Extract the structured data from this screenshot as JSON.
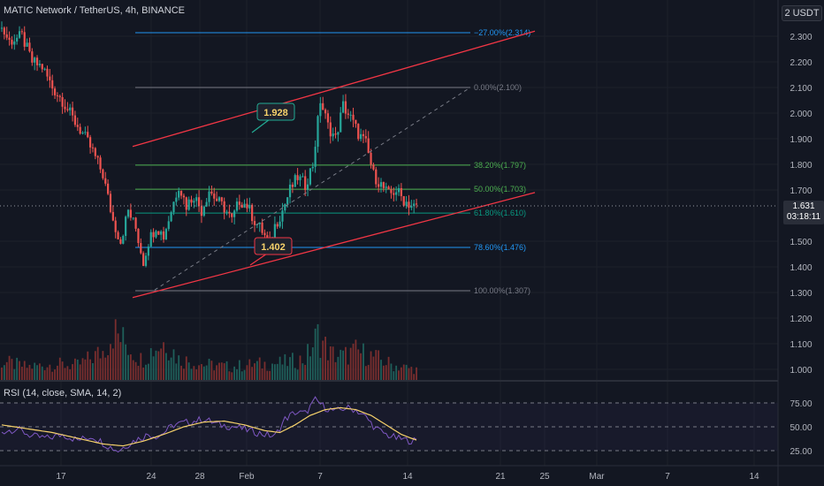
{
  "header": {
    "symbol_label": "MATIC Network / TetherUS, 4h, BINANCE",
    "unit_label": "2 USDT"
  },
  "price_axis": {
    "ticks": [
      "2.300",
      "2.200",
      "2.100",
      "2.000",
      "1.900",
      "1.800",
      "1.700",
      "1.500",
      "1.400",
      "1.300",
      "1.200",
      "1.100",
      "1.000"
    ]
  },
  "current_price": {
    "value": "1.631",
    "countdown": "03:18:11"
  },
  "time_axis": {
    "ticks": [
      "17",
      "24",
      "28",
      "Feb",
      "7",
      "14",
      "21",
      "25",
      "Mar",
      "7",
      "14"
    ]
  },
  "rsi": {
    "legend": "RSI (14, close, SMA, 14, 2)",
    "ticks": [
      "75.00",
      "50.00",
      "25.00"
    ]
  },
  "fib": {
    "levels": [
      {
        "label": "−27.00%(2.314)",
        "price": 2.314,
        "color": "#2196f3"
      },
      {
        "label": "0.00%(2.100)",
        "price": 2.1,
        "color": "#787b86"
      },
      {
        "label": "38.20%(1.797)",
        "price": 1.797,
        "color": "#4caf50"
      },
      {
        "label": "50.00%(1.703)",
        "price": 1.703,
        "color": "#4caf50"
      },
      {
        "label": "61.80%(1.610)",
        "price": 1.61,
        "color": "#089981"
      },
      {
        "label": "78.60%(1.476)",
        "price": 1.476,
        "color": "#2196f3"
      },
      {
        "label": "100.00%(1.307)",
        "price": 1.307,
        "color": "#787b86"
      }
    ]
  },
  "callouts": [
    {
      "text": "1.928",
      "color": "#22ab94"
    },
    {
      "text": "1.402",
      "color": "#f23645"
    }
  ],
  "chart_data": {
    "type": "candlestick",
    "title": "MATIC Network / TetherUS, 4h, BINANCE",
    "ylim": [
      0.97,
      2.4
    ],
    "price_axis_unit": "USDT",
    "colors": {
      "up": "#26a69a",
      "down": "#ef5350",
      "channel": "#f23645",
      "rsi": "#7e57c2",
      "rsi_ma": "#f7d26b"
    },
    "close_path": [
      [
        0,
        2.33
      ],
      [
        3,
        2.28
      ],
      [
        8,
        2.3
      ],
      [
        12,
        2.2
      ],
      [
        16,
        2.18
      ],
      [
        20,
        2.1
      ],
      [
        24,
        2.05
      ],
      [
        28,
        1.98
      ],
      [
        32,
        1.92
      ],
      [
        36,
        1.85
      ],
      [
        40,
        1.76
      ],
      [
        44,
        1.58
      ],
      [
        47,
        1.5
      ],
      [
        50,
        1.62
      ],
      [
        53,
        1.55
      ],
      [
        56,
        1.42
      ],
      [
        58,
        1.5
      ],
      [
        61,
        1.56
      ],
      [
        64,
        1.52
      ],
      [
        67,
        1.62
      ],
      [
        70,
        1.72
      ],
      [
        73,
        1.64
      ],
      [
        76,
        1.68
      ],
      [
        79,
        1.62
      ],
      [
        82,
        1.7
      ],
      [
        85,
        1.66
      ],
      [
        88,
        1.63
      ],
      [
        91,
        1.58
      ],
      [
        94,
        1.66
      ],
      [
        97,
        1.64
      ],
      [
        100,
        1.58
      ],
      [
        103,
        1.54
      ],
      [
        106,
        1.48
      ],
      [
        108,
        1.56
      ],
      [
        111,
        1.62
      ],
      [
        114,
        1.7
      ],
      [
        117,
        1.75
      ],
      [
        120,
        1.72
      ],
      [
        123,
        1.8
      ],
      [
        126,
        2.05
      ],
      [
        129,
        1.95
      ],
      [
        132,
        1.9
      ],
      [
        135,
        2.03
      ],
      [
        138,
        1.98
      ],
      [
        141,
        1.92
      ],
      [
        144,
        1.88
      ],
      [
        147,
        1.76
      ],
      [
        150,
        1.72
      ],
      [
        153,
        1.68
      ],
      [
        156,
        1.7
      ],
      [
        159,
        1.66
      ],
      [
        162,
        1.64
      ],
      [
        164,
        1.631
      ]
    ],
    "volume_path": [
      [
        0,
        0.35
      ],
      [
        10,
        0.25
      ],
      [
        20,
        0.3
      ],
      [
        30,
        0.28
      ],
      [
        40,
        0.55
      ],
      [
        44,
        0.95
      ],
      [
        50,
        0.65
      ],
      [
        55,
        0.4
      ],
      [
        60,
        0.6
      ],
      [
        65,
        0.75
      ],
      [
        70,
        0.4
      ],
      [
        80,
        0.3
      ],
      [
        90,
        0.25
      ],
      [
        100,
        0.3
      ],
      [
        110,
        0.32
      ],
      [
        120,
        0.4
      ],
      [
        125,
        0.85
      ],
      [
        130,
        0.5
      ],
      [
        135,
        0.45
      ],
      [
        140,
        0.55
      ],
      [
        145,
        0.48
      ],
      [
        150,
        0.38
      ],
      [
        155,
        0.28
      ],
      [
        164,
        0.2
      ]
    ],
    "rsi_path": [
      [
        0,
        45
      ],
      [
        6,
        48
      ],
      [
        12,
        40
      ],
      [
        18,
        38
      ],
      [
        24,
        42
      ],
      [
        30,
        36
      ],
      [
        36,
        40
      ],
      [
        42,
        30
      ],
      [
        46,
        25
      ],
      [
        52,
        35
      ],
      [
        58,
        42
      ],
      [
        62,
        40
      ],
      [
        68,
        52
      ],
      [
        74,
        55
      ],
      [
        80,
        58
      ],
      [
        86,
        52
      ],
      [
        92,
        50
      ],
      [
        98,
        46
      ],
      [
        104,
        42
      ],
      [
        108,
        40
      ],
      [
        112,
        58
      ],
      [
        116,
        65
      ],
      [
        120,
        64
      ],
      [
        124,
        78
      ],
      [
        128,
        70
      ],
      [
        132,
        66
      ],
      [
        136,
        70
      ],
      [
        140,
        68
      ],
      [
        144,
        60
      ],
      [
        148,
        48
      ],
      [
        152,
        42
      ],
      [
        156,
        38
      ],
      [
        160,
        36
      ],
      [
        164,
        35
      ]
    ],
    "rsi_ma_path": [
      [
        0,
        52
      ],
      [
        10,
        48
      ],
      [
        20,
        44
      ],
      [
        30,
        38
      ],
      [
        40,
        32
      ],
      [
        48,
        30
      ],
      [
        56,
        35
      ],
      [
        64,
        42
      ],
      [
        72,
        50
      ],
      [
        80,
        55
      ],
      [
        88,
        56
      ],
      [
        96,
        52
      ],
      [
        104,
        46
      ],
      [
        110,
        44
      ],
      [
        116,
        52
      ],
      [
        122,
        62
      ],
      [
        128,
        68
      ],
      [
        134,
        70
      ],
      [
        140,
        68
      ],
      [
        146,
        62
      ],
      [
        152,
        52
      ],
      [
        158,
        42
      ],
      [
        164,
        36
      ]
    ],
    "channel": {
      "upper": {
        "from": [
          0,
          1.87
        ],
        "to": [
          164,
          2.32
        ]
      },
      "lower": {
        "from": [
          0,
          1.28
        ],
        "to": [
          164,
          1.69
        ]
      },
      "diagonal": {
        "from": [
          0,
          1.31
        ],
        "to": [
          140,
          2.1
        ]
      }
    },
    "candle_count": 165
  }
}
